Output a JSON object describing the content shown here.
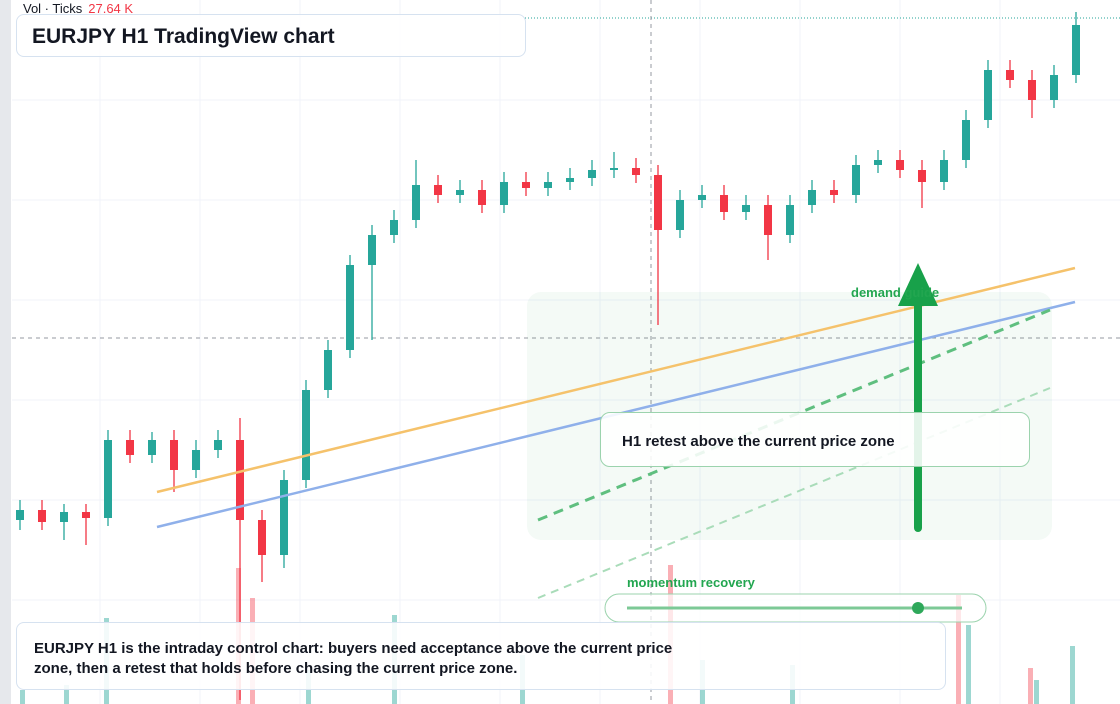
{
  "header": {
    "volume_label": "Vol · Ticks",
    "volume_value": "27.64 K",
    "title": "EURJPY H1 TradingView chart"
  },
  "annotations": {
    "demand": "demand guide",
    "retest": "H1 retest above the current price zone",
    "momentum": "momentum recovery"
  },
  "note": "EURJPY H1 is the intraday control chart: buyers need acceptance above the current price zone, then a retest that holds before chasing the current price zone."
}
